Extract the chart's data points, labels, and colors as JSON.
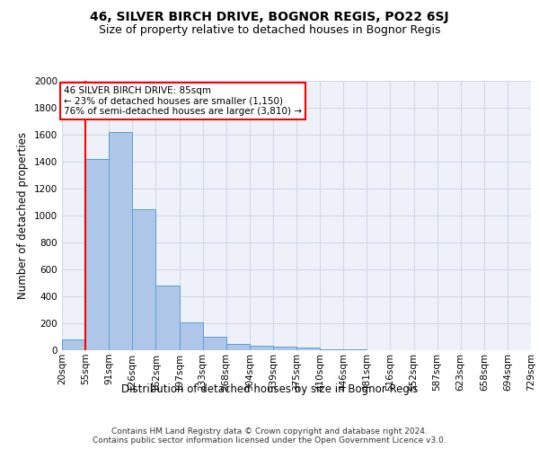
{
  "title1": "46, SILVER BIRCH DRIVE, BOGNOR REGIS, PO22 6SJ",
  "title2": "Size of property relative to detached houses in Bognor Regis",
  "xlabel": "Distribution of detached houses by size in Bognor Regis",
  "ylabel": "Number of detached properties",
  "footnote": "Contains HM Land Registry data © Crown copyright and database right 2024.\nContains public sector information licensed under the Open Government Licence v3.0.",
  "bin_labels": [
    "20sqm",
    "55sqm",
    "91sqm",
    "126sqm",
    "162sqm",
    "197sqm",
    "233sqm",
    "268sqm",
    "304sqm",
    "339sqm",
    "375sqm",
    "410sqm",
    "446sqm",
    "481sqm",
    "516sqm",
    "552sqm",
    "587sqm",
    "623sqm",
    "658sqm",
    "694sqm",
    "729sqm"
  ],
  "bar_heights": [
    80,
    1420,
    1620,
    1050,
    480,
    205,
    100,
    50,
    35,
    25,
    20,
    10,
    5,
    3,
    2,
    2,
    1,
    1,
    1,
    0
  ],
  "bar_color": "#aec6e8",
  "bar_edge_color": "#5a9fd4",
  "red_line_x": 1.0,
  "annotation_text": "46 SILVER BIRCH DRIVE: 85sqm\n← 23% of detached houses are smaller (1,150)\n76% of semi-detached houses are larger (3,810) →",
  "annotation_box_color": "white",
  "annotation_box_edge": "red",
  "ylim": [
    0,
    2000
  ],
  "yticks": [
    0,
    200,
    400,
    600,
    800,
    1000,
    1200,
    1400,
    1600,
    1800,
    2000
  ],
  "grid_color": "#d0d8e8",
  "bg_color": "#eef2f8",
  "fig_color": "white",
  "title1_fontsize": 10,
  "title2_fontsize": 9,
  "xlabel_fontsize": 8.5,
  "ylabel_fontsize": 8.5,
  "footnote_fontsize": 6.5,
  "tick_fontsize": 7.5,
  "annotation_fontsize": 7.5
}
